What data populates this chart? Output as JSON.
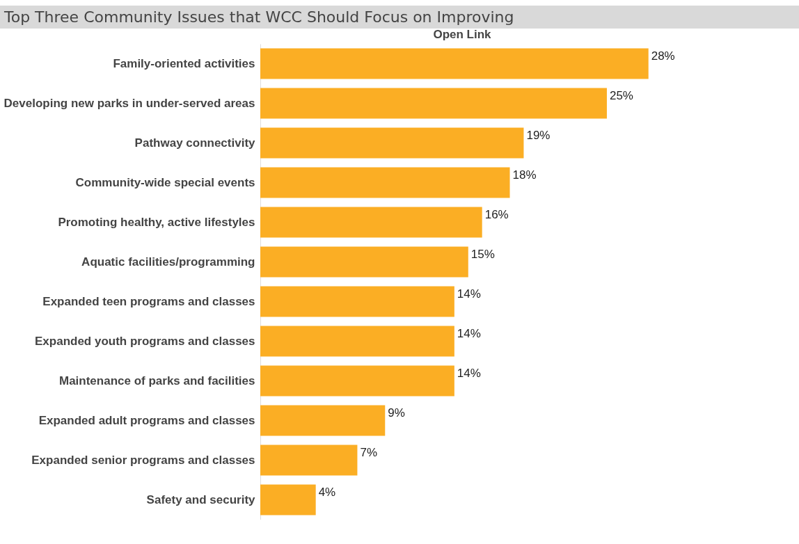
{
  "chart_data": {
    "type": "bar",
    "orientation": "horizontal",
    "title": "Top Three Community Issues that WCC Should Focus on Improving",
    "subtitle": "Open Link",
    "categories": [
      "Family-oriented activities",
      "Developing new parks in under-served areas",
      "Pathway connectivity",
      "Community-wide special events",
      "Promoting healthy, active lifestyles",
      "Aquatic facilities/programming",
      "Expanded teen programs and classes",
      "Expanded youth programs and classes",
      "Maintenance of parks and facilities",
      "Expanded adult programs and classes",
      "Expanded senior programs and classes",
      "Safety and security"
    ],
    "values": [
      28,
      25,
      19,
      18,
      16,
      15,
      14,
      14,
      14,
      9,
      7,
      4
    ],
    "value_labels": [
      "28%",
      "25%",
      "19%",
      "18%",
      "16%",
      "15%",
      "14%",
      "14%",
      "14%",
      "9%",
      "7%",
      "4%"
    ],
    "color": "#fbae24",
    "grid": false
  }
}
